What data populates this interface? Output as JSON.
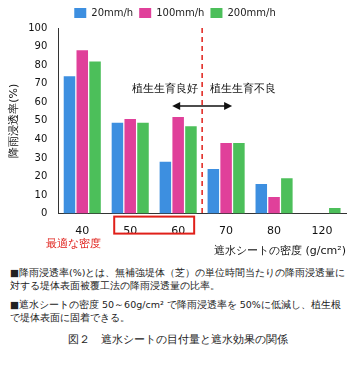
{
  "chart_data": {
    "type": "bar",
    "categories": [
      "40",
      "50",
      "60",
      "70",
      "80",
      "120"
    ],
    "series": [
      {
        "name": "20mm/h",
        "color": "#3d8fe0",
        "values": [
          74,
          49,
          28,
          24,
          16,
          0
        ]
      },
      {
        "name": "100mm/h",
        "color": "#e0409a",
        "values": [
          88,
          51,
          52,
          38,
          9,
          0
        ]
      },
      {
        "name": "200mm/h",
        "color": "#4cbf5a",
        "values": [
          82,
          49,
          47,
          38,
          19,
          3
        ]
      }
    ],
    "x_label": "遮水シートの密度 (g/cm²)",
    "y_label": "降雨浸透率(%)",
    "ylim": [
      0,
      100
    ],
    "yticks": [
      0,
      10,
      20,
      30,
      40,
      50,
      60,
      70,
      80,
      90,
      100
    ],
    "legend": "top",
    "grid": false,
    "annotations": [
      "植生生育良好",
      "植生生育不良",
      "最適な密度"
    ]
  },
  "notes": [
    "■降雨浸透率(%)とは、無補強堤体（芝）の単位時間当たりの降雨浸透量に対する堤体表面被覆工法の降雨浸透量の比率。",
    "■遮水シートの密度 50～60g/cm² で降雨浸透率を 50%に低減し、植生根で堤体表面に固着できる。"
  ],
  "caption": "図２　遮水シートの目付量と遮水効果の関係"
}
